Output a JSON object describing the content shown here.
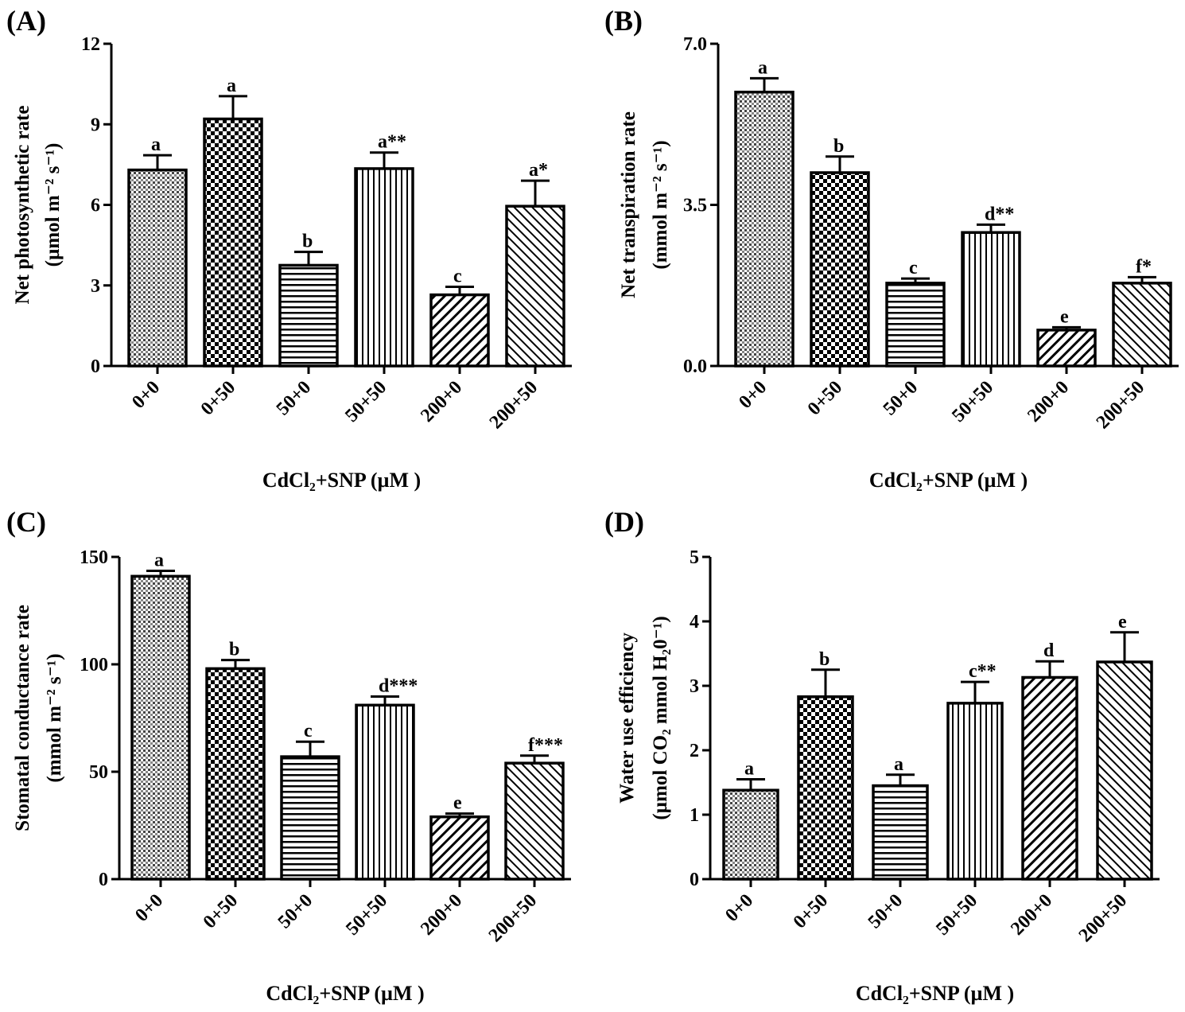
{
  "chart_data": [
    {
      "type": "bar",
      "panel": "(A)",
      "categories": [
        "0+0",
        "0+50",
        "50+0",
        "50+50",
        "200+0",
        "200+50"
      ],
      "values": [
        7.3,
        9.2,
        3.75,
        7.35,
        2.65,
        5.95
      ],
      "errors": [
        0.55,
        0.85,
        0.5,
        0.6,
        0.3,
        0.95
      ],
      "significance": [
        "a",
        "a",
        "b",
        "a**",
        "c",
        "a*"
      ],
      "ylim": [
        0,
        12
      ],
      "yticks": [
        "0",
        "3",
        "6",
        "9",
        "12"
      ],
      "ylabel_line1": "Net photosynthetic rate",
      "ylabel_line2": "(µmol m⁻² s⁻¹)",
      "xlabel": "CdCl₂+SNP (µM )"
    },
    {
      "type": "bar",
      "panel": "(B)",
      "categories": [
        "0+0",
        "0+50",
        "50+0",
        "50+50",
        "200+0",
        "200+50"
      ],
      "values": [
        5.95,
        4.2,
        1.8,
        2.9,
        0.78,
        1.8
      ],
      "errors": [
        0.3,
        0.35,
        0.1,
        0.17,
        0.06,
        0.13
      ],
      "significance": [
        "a",
        "b",
        "c",
        "d**",
        "e",
        "f*"
      ],
      "ylim": [
        0,
        7
      ],
      "yticks": [
        "0.0",
        "3.5",
        "7.0"
      ],
      "ylabel_line1": "Net transpiration rate",
      "ylabel_line2": "(mmol m⁻² s⁻¹)",
      "xlabel": "CdCl₂+SNP (µM )"
    },
    {
      "type": "bar",
      "panel": "(C)",
      "categories": [
        "0+0",
        "0+50",
        "50+0",
        "50+50",
        "200+0",
        "200+50"
      ],
      "values": [
        141,
        98,
        57,
        81,
        29,
        54
      ],
      "errors": [
        2.5,
        4,
        7,
        4,
        1.5,
        3.5
      ],
      "significance": [
        "a",
        "b",
        "c",
        "d***",
        "e",
        "f***"
      ],
      "ylim": [
        0,
        150
      ],
      "yticks": [
        "0",
        "50",
        "100",
        "150"
      ],
      "ylabel_line1": "Stomatal conductance rate",
      "ylabel_line2": "(mmol m⁻² s⁻¹)",
      "xlabel": "CdCl₂+SNP (µM )"
    },
    {
      "type": "bar",
      "panel": "(D)",
      "categories": [
        "0+0",
        "0+50",
        "50+0",
        "50+50",
        "200+0",
        "200+50"
      ],
      "values": [
        1.38,
        2.83,
        1.45,
        2.73,
        3.13,
        3.37
      ],
      "errors": [
        0.17,
        0.42,
        0.17,
        0.33,
        0.25,
        0.46
      ],
      "significance": [
        "a",
        "b",
        "a",
        "c**",
        "d",
        "e"
      ],
      "ylim": [
        0,
        5
      ],
      "yticks": [
        "0",
        "1",
        "2",
        "3",
        "4",
        "5"
      ],
      "ylabel_line1": "Water use efficiency",
      "ylabel_line2": "(µmol CO₂ mmol H₂0⁻¹)",
      "xlabel": "CdCl₂+SNP (µM )"
    }
  ]
}
